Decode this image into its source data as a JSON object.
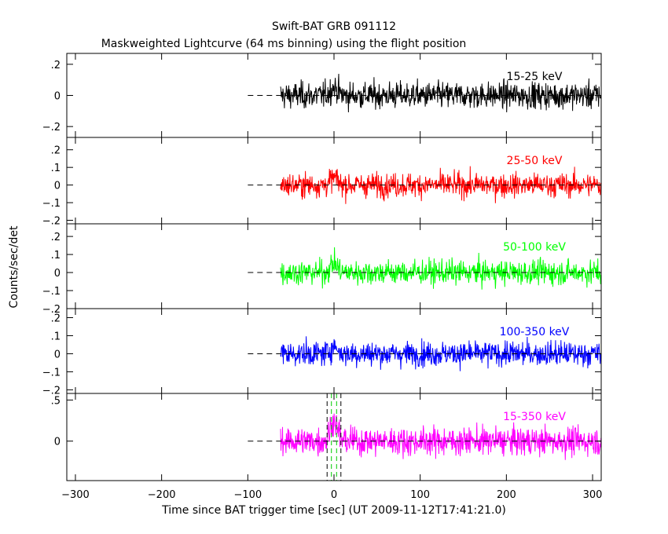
{
  "header": {
    "title": "Swift-BAT GRB 091112",
    "subtitle": "Maskweighted Lightcurve (64 ms binning) using the flight position"
  },
  "axes": {
    "xlabel": "Time since BAT trigger time [sec] (UT 2009-11-12T17:41:21.0)",
    "ylabel": "Counts/sec/det",
    "xlim": [
      -310,
      310
    ],
    "xticks": [
      -300,
      -200,
      -100,
      0,
      100,
      200,
      300
    ]
  },
  "chart_data": {
    "type": "line",
    "x_range_of_data": [
      -62,
      310
    ],
    "dashed_zero_start": -100,
    "trigger_markers": {
      "black_dashed_x": [
        -8,
        8
      ],
      "green_dashed_x": [
        -3,
        3
      ]
    },
    "panels": [
      {
        "band": "15-25 keV",
        "color": "#000000",
        "ylim": [
          -0.27,
          0.27
        ],
        "yticks": [
          -0.2,
          0,
          0.2
        ],
        "noise": 0.075,
        "peak": 0.05
      },
      {
        "band": "25-50 keV",
        "color": "#ff0000",
        "ylim": [
          -0.22,
          0.27
        ],
        "yticks": [
          -0.2,
          -0.1,
          0,
          0.1,
          0.2
        ],
        "noise": 0.06,
        "peak": 0.04
      },
      {
        "band": "50-100 keV",
        "color": "#00ff00",
        "ylim": [
          -0.2,
          0.27
        ],
        "yticks": [
          -0.2,
          -0.1,
          0,
          0.1,
          0.2
        ],
        "noise": 0.06,
        "peak": 0.05
      },
      {
        "band": "100-350 keV",
        "color": "#0000ff",
        "ylim": [
          -0.22,
          0.25
        ],
        "yticks": [
          -0.2,
          -0.1,
          0,
          0.1,
          0.2
        ],
        "noise": 0.06,
        "peak": 0.04
      },
      {
        "band": "15-350 keV",
        "color": "#ff00ff",
        "ylim": [
          -0.48,
          0.58
        ],
        "yticks": [
          0,
          0.5
        ],
        "noise": 0.15,
        "peak": 0.25
      }
    ]
  }
}
